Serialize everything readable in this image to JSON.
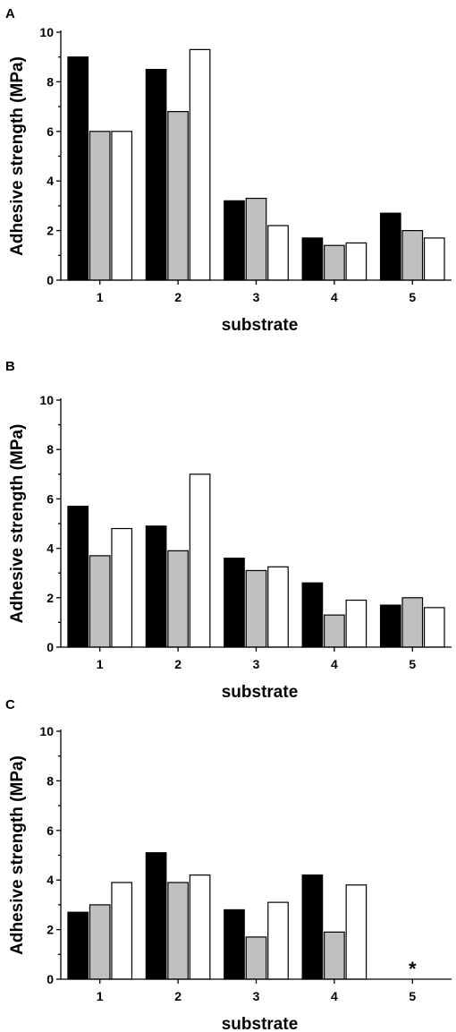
{
  "chart_data": [
    {
      "type": "bar",
      "panel": "A",
      "categories": [
        "1",
        "2",
        "3",
        "4",
        "5"
      ],
      "series": [
        {
          "color": "#000000",
          "values": [
            9.0,
            8.5,
            3.2,
            1.7,
            2.7
          ]
        },
        {
          "color": "#c0c0c0",
          "values": [
            6.0,
            6.8,
            3.3,
            1.4,
            2.0
          ]
        },
        {
          "color": "#ffffff",
          "values": [
            6.0,
            9.3,
            2.2,
            1.5,
            1.7
          ]
        }
      ],
      "xlabel": "substrate",
      "ylabel": "Adhesive strength (MPa)",
      "ylim": [
        0,
        10
      ],
      "yticks": [
        "0",
        "2",
        "4",
        "6",
        "8",
        "10"
      ],
      "grid": false,
      "annotations": []
    },
    {
      "type": "bar",
      "panel": "B",
      "categories": [
        "1",
        "2",
        "3",
        "4",
        "5"
      ],
      "series": [
        {
          "color": "#000000",
          "values": [
            5.7,
            4.9,
            3.6,
            2.6,
            1.7
          ]
        },
        {
          "color": "#c0c0c0",
          "values": [
            3.7,
            3.9,
            3.1,
            1.3,
            2.0
          ]
        },
        {
          "color": "#ffffff",
          "values": [
            4.8,
            7.0,
            3.25,
            1.9,
            1.6
          ]
        }
      ],
      "xlabel": "substrate",
      "ylabel": "Adhesive strength (MPa)",
      "ylim": [
        0,
        10
      ],
      "yticks": [
        "0",
        "2",
        "4",
        "6",
        "8",
        "10"
      ],
      "grid": false,
      "annotations": []
    },
    {
      "type": "bar",
      "panel": "C",
      "categories": [
        "1",
        "2",
        "3",
        "4",
        "5"
      ],
      "series": [
        {
          "color": "#000000",
          "values": [
            2.7,
            5.1,
            2.8,
            4.2,
            null
          ]
        },
        {
          "color": "#c0c0c0",
          "values": [
            3.0,
            3.9,
            1.7,
            1.9,
            null
          ]
        },
        {
          "color": "#ffffff",
          "values": [
            3.9,
            4.2,
            3.1,
            3.8,
            null
          ]
        }
      ],
      "xlabel": "substrate",
      "ylabel": "Adhesive strength (MPa)",
      "ylim": [
        0,
        10
      ],
      "yticks": [
        "0",
        "2",
        "4",
        "6",
        "8",
        "10"
      ],
      "grid": false,
      "annotations": [
        {
          "category": "5",
          "text": "*"
        }
      ]
    }
  ]
}
